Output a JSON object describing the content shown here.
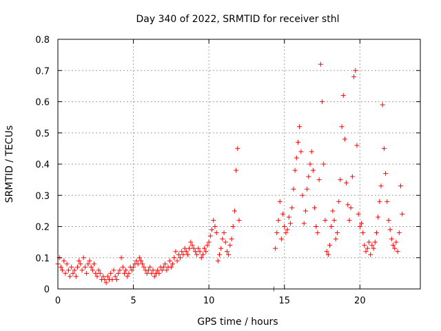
{
  "chart_data": {
    "type": "scatter",
    "title": "Day 340 of 2022, SRMTID for receiver sthl",
    "xlabel": "GPS time / hours",
    "ylabel": "SRMTID / TECUs",
    "xlim": [
      0,
      24
    ],
    "ylim": [
      0,
      0.8
    ],
    "xticks": [
      0,
      5,
      10,
      15,
      20
    ],
    "yticks": [
      0,
      0.1,
      0.2,
      0.3,
      0.4,
      0.5,
      0.6,
      0.7,
      0.8
    ],
    "xtick_labels": [
      "0",
      "5",
      "10",
      "15",
      "20"
    ],
    "ytick_labels": [
      "0",
      "0.1",
      "0.2",
      "0.3",
      "0.4",
      "0.5",
      "0.6",
      "0.7",
      "0.8"
    ],
    "grid": true,
    "marker": "+",
    "color": "#ff0000",
    "series": [
      {
        "name": "SRMTID",
        "points": [
          [
            0.0,
            0.08
          ],
          [
            0.1,
            0.1
          ],
          [
            0.2,
            0.07
          ],
          [
            0.3,
            0.06
          ],
          [
            0.4,
            0.09
          ],
          [
            0.5,
            0.05
          ],
          [
            0.6,
            0.08
          ],
          [
            0.7,
            0.06
          ],
          [
            0.8,
            0.04
          ],
          [
            0.9,
            0.07
          ],
          [
            1.0,
            0.05
          ],
          [
            1.1,
            0.06
          ],
          [
            1.2,
            0.04
          ],
          [
            1.3,
            0.07
          ],
          [
            1.4,
            0.09
          ],
          [
            1.5,
            0.08
          ],
          [
            1.6,
            0.06
          ],
          [
            1.7,
            0.1
          ],
          [
            1.8,
            0.07
          ],
          [
            1.9,
            0.05
          ],
          [
            2.0,
            0.08
          ],
          [
            2.1,
            0.09
          ],
          [
            2.2,
            0.07
          ],
          [
            2.3,
            0.06
          ],
          [
            2.4,
            0.08
          ],
          [
            2.5,
            0.05
          ],
          [
            2.6,
            0.04
          ],
          [
            2.7,
            0.06
          ],
          [
            2.8,
            0.05
          ],
          [
            2.9,
            0.03
          ],
          [
            3.0,
            0.04
          ],
          [
            3.1,
            0.03
          ],
          [
            3.2,
            0.02
          ],
          [
            3.3,
            0.04
          ],
          [
            3.4,
            0.03
          ],
          [
            3.5,
            0.05
          ],
          [
            3.6,
            0.03
          ],
          [
            3.7,
            0.06
          ],
          [
            3.8,
            0.04
          ],
          [
            3.9,
            0.03
          ],
          [
            4.0,
            0.05
          ],
          [
            4.1,
            0.06
          ],
          [
            4.2,
            0.1
          ],
          [
            4.3,
            0.07
          ],
          [
            4.4,
            0.05
          ],
          [
            4.5,
            0.06
          ],
          [
            4.6,
            0.04
          ],
          [
            4.7,
            0.05
          ],
          [
            4.8,
            0.07
          ],
          [
            4.9,
            0.06
          ],
          [
            5.0,
            0.07
          ],
          [
            5.1,
            0.08
          ],
          [
            5.2,
            0.09
          ],
          [
            5.3,
            0.08
          ],
          [
            5.4,
            0.1
          ],
          [
            5.5,
            0.09
          ],
          [
            5.6,
            0.08
          ],
          [
            5.7,
            0.07
          ],
          [
            5.8,
            0.06
          ],
          [
            5.9,
            0.05
          ],
          [
            6.0,
            0.06
          ],
          [
            6.1,
            0.07
          ],
          [
            6.2,
            0.05
          ],
          [
            6.3,
            0.06
          ],
          [
            6.4,
            0.04
          ],
          [
            6.5,
            0.05
          ],
          [
            6.6,
            0.06
          ],
          [
            6.7,
            0.05
          ],
          [
            6.8,
            0.07
          ],
          [
            6.9,
            0.06
          ],
          [
            7.0,
            0.07
          ],
          [
            7.1,
            0.08
          ],
          [
            7.2,
            0.06
          ],
          [
            7.3,
            0.07
          ],
          [
            7.4,
            0.09
          ],
          [
            7.5,
            0.07
          ],
          [
            7.6,
            0.08
          ],
          [
            7.7,
            0.1
          ],
          [
            7.8,
            0.12
          ],
          [
            7.9,
            0.09
          ],
          [
            8.0,
            0.11
          ],
          [
            8.1,
            0.1
          ],
          [
            8.2,
            0.12
          ],
          [
            8.3,
            0.11
          ],
          [
            8.4,
            0.13
          ],
          [
            8.5,
            0.12
          ],
          [
            8.6,
            0.11
          ],
          [
            8.7,
            0.13
          ],
          [
            8.8,
            0.15
          ],
          [
            8.9,
            0.14
          ],
          [
            9.0,
            0.13
          ],
          [
            9.1,
            0.12
          ],
          [
            9.2,
            0.11
          ],
          [
            9.3,
            0.13
          ],
          [
            9.4,
            0.12
          ],
          [
            9.5,
            0.1
          ],
          [
            9.6,
            0.11
          ],
          [
            9.7,
            0.13
          ],
          [
            9.8,
            0.12
          ],
          [
            9.9,
            0.14
          ],
          [
            10.0,
            0.15
          ],
          [
            10.1,
            0.17
          ],
          [
            10.2,
            0.19
          ],
          [
            10.3,
            0.22
          ],
          [
            10.4,
            0.2
          ],
          [
            10.5,
            0.18
          ],
          [
            10.6,
            0.09
          ],
          [
            10.7,
            0.11
          ],
          [
            10.8,
            0.13
          ],
          [
            10.9,
            0.16
          ],
          [
            11.0,
            0.18
          ],
          [
            11.1,
            0.15
          ],
          [
            11.2,
            0.12
          ],
          [
            11.3,
            0.11
          ],
          [
            11.4,
            0.14
          ],
          [
            11.5,
            0.16
          ],
          [
            11.6,
            0.2
          ],
          [
            11.7,
            0.25
          ],
          [
            11.8,
            0.38
          ],
          [
            11.9,
            0.45
          ],
          [
            12.0,
            0.22
          ],
          [
            14.3,
            0.0
          ],
          [
            14.4,
            0.13
          ],
          [
            14.5,
            0.18
          ],
          [
            14.6,
            0.22
          ],
          [
            14.7,
            0.28
          ],
          [
            14.8,
            0.16
          ],
          [
            14.9,
            0.24
          ],
          [
            15.0,
            0.2
          ],
          [
            15.1,
            0.18
          ],
          [
            15.2,
            0.19
          ],
          [
            15.3,
            0.23
          ],
          [
            15.4,
            0.21
          ],
          [
            15.5,
            0.26
          ],
          [
            15.6,
            0.32
          ],
          [
            15.7,
            0.38
          ],
          [
            15.8,
            0.42
          ],
          [
            15.9,
            0.47
          ],
          [
            16.0,
            0.52
          ],
          [
            16.1,
            0.44
          ],
          [
            16.2,
            0.3
          ],
          [
            16.3,
            0.21
          ],
          [
            16.4,
            0.25
          ],
          [
            16.5,
            0.32
          ],
          [
            16.6,
            0.36
          ],
          [
            16.7,
            0.4
          ],
          [
            16.8,
            0.44
          ],
          [
            16.9,
            0.38
          ],
          [
            17.0,
            0.26
          ],
          [
            17.1,
            0.2
          ],
          [
            17.2,
            0.18
          ],
          [
            17.3,
            0.35
          ],
          [
            17.4,
            0.72
          ],
          [
            17.5,
            0.6
          ],
          [
            17.6,
            0.4
          ],
          [
            17.7,
            0.22
          ],
          [
            17.8,
            0.12
          ],
          [
            17.9,
            0.11
          ],
          [
            18.0,
            0.14
          ],
          [
            18.1,
            0.2
          ],
          [
            18.2,
            0.25
          ],
          [
            18.3,
            0.22
          ],
          [
            18.4,
            0.16
          ],
          [
            18.5,
            0.18
          ],
          [
            18.6,
            0.28
          ],
          [
            18.7,
            0.35
          ],
          [
            18.8,
            0.52
          ],
          [
            18.9,
            0.62
          ],
          [
            19.0,
            0.48
          ],
          [
            19.1,
            0.34
          ],
          [
            19.2,
            0.27
          ],
          [
            19.3,
            0.22
          ],
          [
            19.4,
            0.26
          ],
          [
            19.5,
            0.36
          ],
          [
            19.6,
            0.68
          ],
          [
            19.7,
            0.7
          ],
          [
            19.8,
            0.46
          ],
          [
            19.9,
            0.24
          ],
          [
            20.0,
            0.2
          ],
          [
            20.1,
            0.21
          ],
          [
            20.2,
            0.18
          ],
          [
            20.3,
            0.14
          ],
          [
            20.4,
            0.12
          ],
          [
            20.5,
            0.13
          ],
          [
            20.6,
            0.15
          ],
          [
            20.7,
            0.11
          ],
          [
            20.8,
            0.14
          ],
          [
            20.9,
            0.13
          ],
          [
            21.0,
            0.15
          ],
          [
            21.1,
            0.18
          ],
          [
            21.2,
            0.23
          ],
          [
            21.3,
            0.28
          ],
          [
            21.4,
            0.33
          ],
          [
            21.5,
            0.59
          ],
          [
            21.6,
            0.45
          ],
          [
            21.7,
            0.37
          ],
          [
            21.8,
            0.28
          ],
          [
            21.9,
            0.22
          ],
          [
            22.0,
            0.19
          ],
          [
            22.1,
            0.16
          ],
          [
            22.2,
            0.14
          ],
          [
            22.3,
            0.13
          ],
          [
            22.4,
            0.15
          ],
          [
            22.5,
            0.12
          ],
          [
            22.6,
            0.18
          ],
          [
            22.7,
            0.33
          ],
          [
            22.8,
            0.24
          ]
        ]
      }
    ]
  }
}
